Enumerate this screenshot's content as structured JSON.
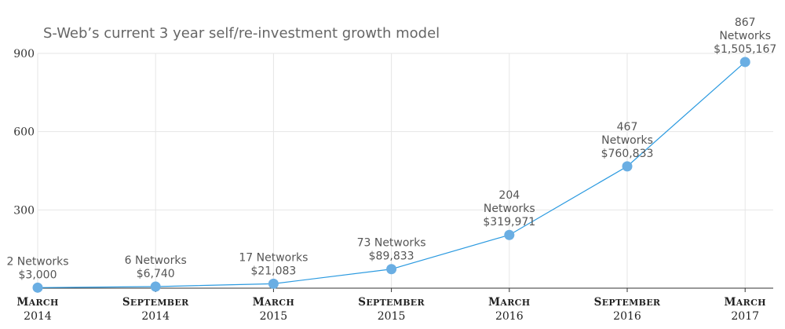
{
  "chart_data": {
    "type": "line",
    "title": "S-Web’s current 3 year self/re-investment growth model",
    "xlabel": "",
    "ylabel": "",
    "ylim": [
      0,
      900
    ],
    "yticks": [
      "300",
      "600",
      "900"
    ],
    "grid": true,
    "categories": [
      {
        "month": "March",
        "year": "2014"
      },
      {
        "month": "September",
        "year": "2014"
      },
      {
        "month": "March",
        "year": "2015"
      },
      {
        "month": "September",
        "year": "2015"
      },
      {
        "month": "March",
        "year": "2016"
      },
      {
        "month": "September",
        "year": "2016"
      },
      {
        "month": "March",
        "year": "2017"
      }
    ],
    "series": [
      {
        "values": [
          2,
          6,
          17,
          73,
          204,
          467,
          867
        ],
        "color": "#6aaee3",
        "line_color": "#2b9ae0"
      }
    ],
    "data_labels": [
      [
        "2 Networks",
        "$3,000"
      ],
      [
        "6 Networks",
        "$6,740"
      ],
      [
        "17 Networks",
        "$21,083"
      ],
      [
        "73 Networks",
        "$89,833"
      ],
      [
        "204",
        "Networks",
        "$319,971"
      ],
      [
        "467",
        "Networks",
        "$760,833"
      ],
      [
        "867",
        "Networks",
        "$1,505,167"
      ]
    ]
  }
}
